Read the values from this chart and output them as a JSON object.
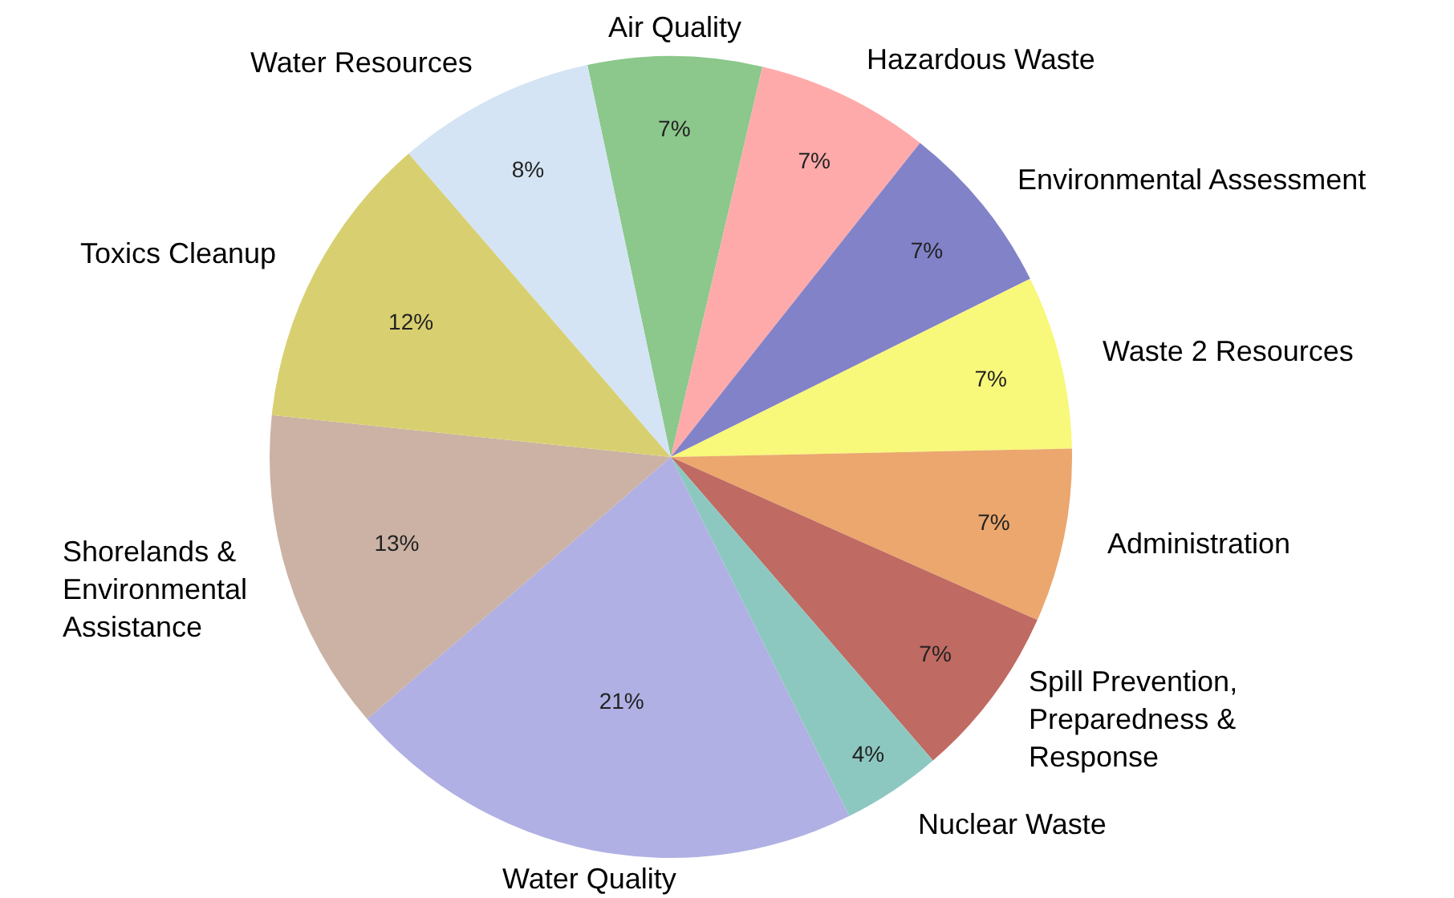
{
  "chart_data": {
    "type": "pie",
    "categories": [
      "Air Quality",
      "Hazardous Waste",
      "Environmental Assessment",
      "Waste 2 Resources",
      "Administration",
      "Spill Prevention,\nPreparedness &\nResponse",
      "Nuclear Waste",
      "Water Quality",
      "Shorelands &\nEnvironmental\nAssistance",
      "Toxics Cleanup",
      "Water Resources"
    ],
    "values": [
      7,
      7,
      7,
      7,
      7,
      7,
      4,
      21,
      13,
      12,
      8
    ],
    "colors": [
      "#8cc78c",
      "#ffaaaa",
      "#8282c8",
      "#f8f87a",
      "#eba76e",
      "#bf6a62",
      "#8cc8c0",
      "#b0b0e4",
      "#cbb2a4",
      "#d8d070",
      "#d4e4f4"
    ],
    "value_labels": [
      "7%",
      "7%",
      "7%",
      "7%",
      "7%",
      "7%",
      "4%",
      "21%",
      "13%",
      "12%",
      "8%"
    ]
  }
}
